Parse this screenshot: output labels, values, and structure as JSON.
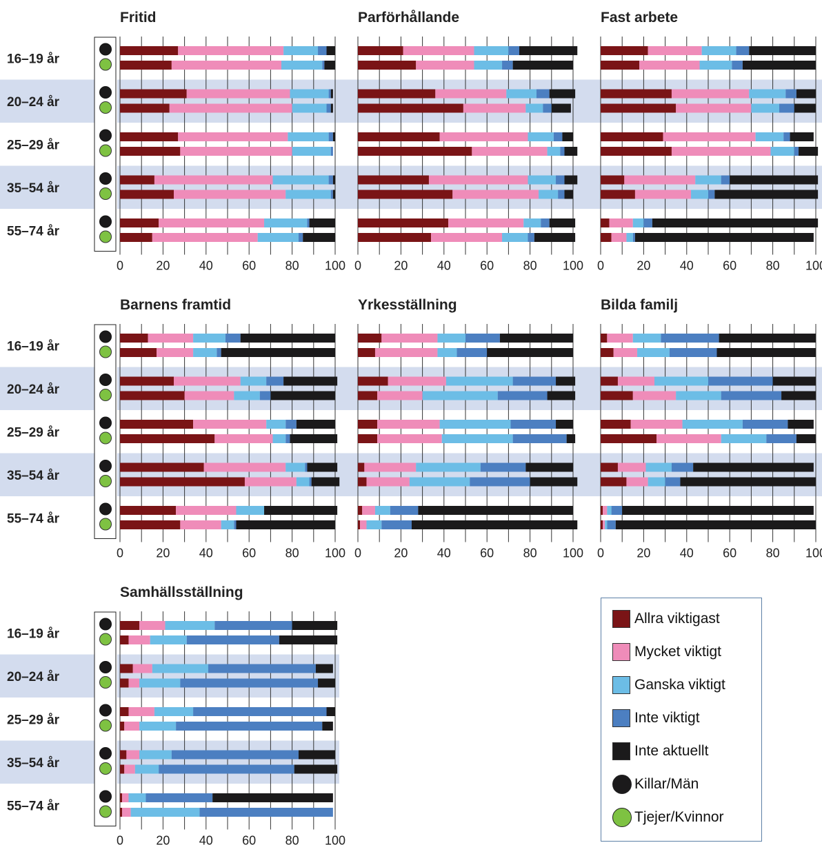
{
  "chart_data": {
    "type": "bar",
    "orientation": "horizontal",
    "stacked": true,
    "xlim": [
      0,
      100
    ],
    "x_ticks": [
      "0",
      "20",
      "40",
      "60",
      "80",
      "100"
    ],
    "age_groups": [
      "16–19 år",
      "20–24 år",
      "25–29 år",
      "35–54 år",
      "55–74 år"
    ],
    "groups": [
      "Killar/Män",
      "Tjejer/Kvinnor"
    ],
    "categories": [
      {
        "name": "Allra viktigast",
        "color": "#7a1416"
      },
      {
        "name": "Mycket viktigt",
        "color": "#ef8cb9"
      },
      {
        "name": "Ganska viktigt",
        "color": "#6cbde6"
      },
      {
        "name": "Inte viktigt",
        "color": "#4c7fc1"
      },
      {
        "name": "Inte aktuellt",
        "color": "#1b1a1b"
      }
    ],
    "panels": [
      {
        "title": "Fritid",
        "rows": [
          [
            [
              27,
              49,
              16,
              4,
              4
            ],
            [
              24,
              51,
              19,
              1,
              5
            ]
          ],
          [
            [
              31,
              48,
              18,
              1,
              1
            ],
            [
              23,
              57,
              16,
              2,
              1
            ]
          ],
          [
            [
              27,
              51,
              19,
              2,
              1
            ],
            [
              28,
              52,
              18,
              1,
              0
            ]
          ],
          [
            [
              16,
              55,
              26,
              2,
              1
            ],
            [
              25,
              52,
              21,
              1,
              1
            ]
          ],
          [
            [
              18,
              49,
              20,
              1,
              12
            ],
            [
              15,
              49,
              19,
              2,
              15
            ]
          ]
        ]
      },
      {
        "title": "Parförhållande",
        "rows": [
          [
            [
              21,
              33,
              16,
              5,
              27
            ],
            [
              27,
              27,
              13,
              5,
              28
            ]
          ],
          [
            [
              36,
              33,
              14,
              6,
              12
            ],
            [
              49,
              29,
              8,
              4,
              9
            ]
          ],
          [
            [
              38,
              41,
              12,
              4,
              5
            ],
            [
              53,
              35,
              6,
              2,
              6
            ]
          ],
          [
            [
              33,
              46,
              13,
              4,
              6
            ],
            [
              44,
              40,
              9,
              3,
              4
            ]
          ],
          [
            [
              42,
              35,
              8,
              4,
              12
            ],
            [
              34,
              33,
              12,
              3,
              19
            ]
          ]
        ]
      },
      {
        "title": "Fast arbete",
        "rows": [
          [
            [
              22,
              25,
              16,
              6,
              31
            ],
            [
              18,
              28,
              15,
              5,
              34
            ]
          ],
          [
            [
              33,
              36,
              17,
              5,
              9
            ],
            [
              35,
              35,
              13,
              7,
              10
            ]
          ],
          [
            [
              29,
              43,
              13,
              3,
              11
            ],
            [
              33,
              46,
              11,
              2,
              9
            ]
          ],
          [
            [
              11,
              33,
              12,
              4,
              41
            ],
            [
              16,
              26,
              8,
              3,
              48
            ]
          ],
          [
            [
              4,
              11,
              5,
              4,
              77
            ],
            [
              5,
              7,
              3,
              1,
              83
            ]
          ]
        ]
      },
      {
        "title": "Barnens framtid",
        "rows": [
          [
            [
              13,
              21,
              15,
              7,
              44
            ],
            [
              17,
              17,
              11,
              2,
              53
            ]
          ],
          [
            [
              25,
              31,
              12,
              8,
              25
            ],
            [
              30,
              23,
              12,
              5,
              30
            ]
          ],
          [
            [
              34,
              34,
              9,
              5,
              18
            ],
            [
              44,
              27,
              6,
              2,
              22
            ]
          ],
          [
            [
              39,
              38,
              9,
              1,
              14
            ],
            [
              58,
              24,
              6,
              1,
              13
            ]
          ],
          [
            [
              26,
              28,
              13,
              0,
              34
            ],
            [
              28,
              19,
              6,
              1,
              46
            ]
          ]
        ]
      },
      {
        "title": "Yrkesställning",
        "rows": [
          [
            [
              11,
              26,
              13,
              16,
              34
            ],
            [
              8,
              29,
              9,
              14,
              40
            ]
          ],
          [
            [
              14,
              27,
              31,
              20,
              9
            ],
            [
              9,
              21,
              35,
              23,
              13
            ]
          ],
          [
            [
              9,
              29,
              33,
              21,
              8
            ],
            [
              9,
              30,
              33,
              25,
              4
            ]
          ],
          [
            [
              3,
              24,
              30,
              21,
              22
            ],
            [
              4,
              20,
              28,
              28,
              22
            ]
          ],
          [
            [
              2,
              6,
              7,
              13,
              72
            ],
            [
              1,
              3,
              7,
              14,
              77
            ]
          ]
        ]
      },
      {
        "title": "Bilda familj",
        "rows": [
          [
            [
              3,
              12,
              13,
              27,
              45
            ],
            [
              6,
              11,
              15,
              22,
              46
            ]
          ],
          [
            [
              8,
              17,
              25,
              30,
              20
            ],
            [
              15,
              20,
              21,
              28,
              16
            ]
          ],
          [
            [
              14,
              24,
              28,
              21,
              12
            ],
            [
              26,
              30,
              21,
              14,
              9
            ]
          ],
          [
            [
              8,
              13,
              12,
              10,
              56
            ],
            [
              12,
              10,
              8,
              7,
              63
            ]
          ],
          [
            [
              1,
              2,
              2,
              5,
              89
            ],
            [
              1,
              1,
              1,
              4,
              93
            ]
          ]
        ]
      },
      {
        "title": "Samhällsställning",
        "rows": [
          [
            [
              9,
              12,
              23,
              36,
              21
            ],
            [
              4,
              10,
              17,
              43,
              27
            ]
          ],
          [
            [
              6,
              9,
              26,
              50,
              8
            ],
            [
              4,
              5,
              19,
              64,
              8
            ]
          ],
          [
            [
              4,
              12,
              18,
              62,
              4
            ],
            [
              2,
              7,
              17,
              68,
              5
            ]
          ],
          [
            [
              3,
              6,
              15,
              59,
              17
            ],
            [
              2,
              5,
              11,
              63,
              20
            ]
          ],
          [
            [
              1,
              3,
              8,
              31,
              56
            ],
            [
              1,
              4,
              32,
              62,
              0
            ]
          ]
        ]
      }
    ]
  },
  "legend": {
    "items": [
      "Allra viktigast",
      "Mycket viktigt",
      "Ganska viktigt",
      "Inte viktigt",
      "Inte aktuellt"
    ],
    "killar_label": "Killar/Män",
    "tjejer_label": "Tjejer/Kvinnor",
    "killar_color": "#1b1a1b",
    "tjejer_color": "#7ec242"
  }
}
